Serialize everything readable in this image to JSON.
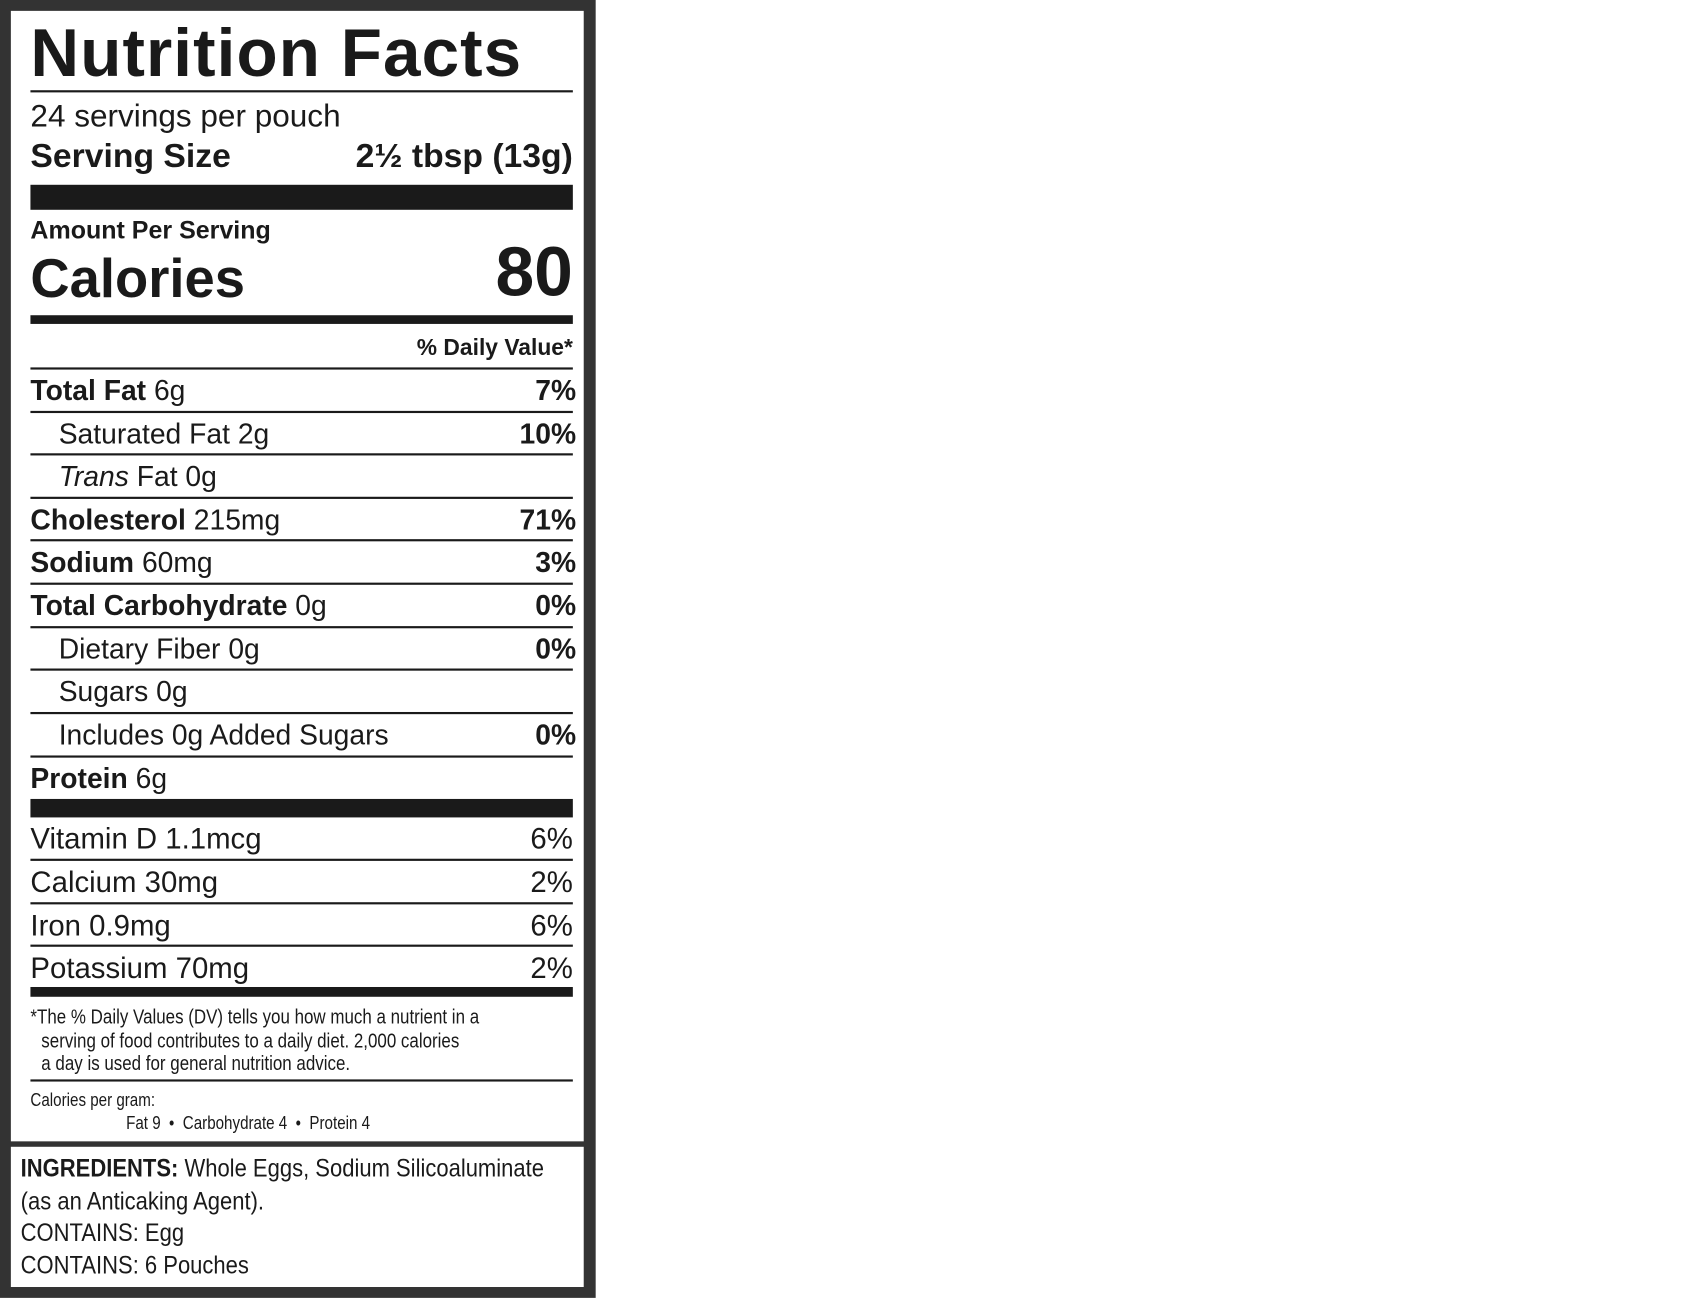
{
  "title": "Nutrition Facts",
  "servings": "24 servings per pouch",
  "serving_size": {
    "label": "Serving Size",
    "value": "2½ tbsp (13g)"
  },
  "amount_per_serving": "Amount Per Serving",
  "calories": {
    "label": "Calories",
    "value": "80"
  },
  "daily_value_header": "% Daily Value*",
  "nutrients": [
    {
      "name": "Total Fat",
      "amount": "6g",
      "dv": "7%"
    },
    {
      "name": "Saturated Fat",
      "amount": "2g",
      "dv": "10%"
    },
    {
      "name_italic": "Trans",
      "name": "Fat",
      "amount": "0g"
    },
    {
      "name": "Cholesterol",
      "amount": "215mg",
      "dv": "71%"
    },
    {
      "name": "Sodium",
      "amount": "60mg",
      "dv": "3%"
    },
    {
      "name": "Total Carbohydrate",
      "amount": "0g",
      "dv": "0%"
    },
    {
      "name": "Dietary Fiber",
      "amount": "0g",
      "dv": "0%"
    },
    {
      "name": "Sugars",
      "amount": "0g"
    },
    {
      "name": "Includes 0g Added Sugars",
      "dv": "0%"
    },
    {
      "name": "Protein",
      "amount": "6g"
    }
  ],
  "vitamins": [
    {
      "name": "Vitamin D",
      "amount": "1.1mcg",
      "dv": "6%"
    },
    {
      "name": "Calcium",
      "amount": "30mg",
      "dv": "2%"
    },
    {
      "name": "Iron",
      "amount": "0.9mg",
      "dv": "6%"
    },
    {
      "name": "Potassium",
      "amount": "70mg",
      "dv": "2%"
    }
  ],
  "footnote": [
    "*The % Daily Values (DV) tells you how much a nutrient in a",
    "serving of food contributes to a daily diet. 2,000 calories",
    "a day is used for general nutrition advice."
  ],
  "calories_per_gram": {
    "label": "Calories per gram:",
    "items": [
      "Fat 9",
      "Carbohydrate 4",
      "Protein 4"
    ]
  },
  "ingredients": {
    "label": "INGREDIENTS:",
    "text": [
      "Whole Eggs, Sodium Silicoaluminate",
      "(as an Anticaking Agent)."
    ]
  },
  "contains": [
    "CONTAINS: Egg",
    "CONTAINS: 6 Pouches"
  ]
}
